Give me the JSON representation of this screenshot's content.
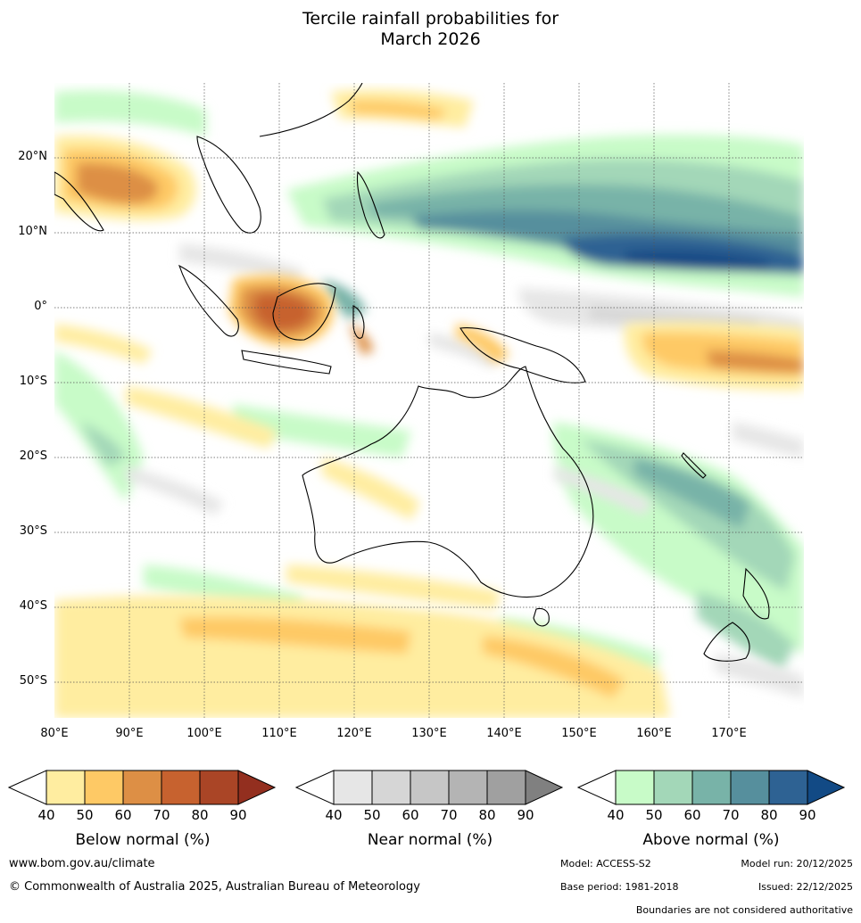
{
  "title": {
    "line1": "Tercile rainfall probabilities for",
    "line2": "March 2026"
  },
  "map": {
    "lat_labels": [
      "20°N",
      "10°N",
      "0°",
      "10°S",
      "20°S",
      "30°S",
      "40°S",
      "50°S"
    ],
    "lon_labels": [
      "80°E",
      "90°E",
      "100°E",
      "110°E",
      "120°E",
      "130°E",
      "140°E",
      "150°E",
      "160°E",
      "170°E"
    ]
  },
  "legends": [
    {
      "title": "Below normal (%)",
      "ticks": [
        "40",
        "50",
        "60",
        "70",
        "80",
        "90"
      ],
      "colors": [
        "#ffffff",
        "#ffeda0",
        "#fec965",
        "#dd8f45",
        "#c7622f",
        "#aa4526",
        "#932f1f"
      ]
    },
    {
      "title": "Near normal (%)",
      "ticks": [
        "40",
        "50",
        "60",
        "70",
        "80",
        "90"
      ],
      "colors": [
        "#ffffff",
        "#e6e6e6",
        "#d6d6d6",
        "#c6c6c6",
        "#b4b4b4",
        "#a0a0a0",
        "#808080"
      ]
    },
    {
      "title": "Above normal (%)",
      "ticks": [
        "40",
        "50",
        "60",
        "70",
        "80",
        "90"
      ],
      "colors": [
        "#ffffff",
        "#c8fbc8",
        "#a3d7b8",
        "#78b3a8",
        "#568f9d",
        "#2e6293",
        "#124a85"
      ]
    }
  ],
  "footer": {
    "website": "www.bom.gov.au/climate",
    "copyright": "© Commonwealth of Australia 2025, Australian Bureau of Meteorology",
    "model": "Model: ACCESS-S2",
    "model_run": "Model run: 20/12/2025",
    "base_period": "Base period: 1981-2018",
    "issued": "Issued: 22/12/2025",
    "disclaimer": "Boundaries are not considered authoritative"
  }
}
